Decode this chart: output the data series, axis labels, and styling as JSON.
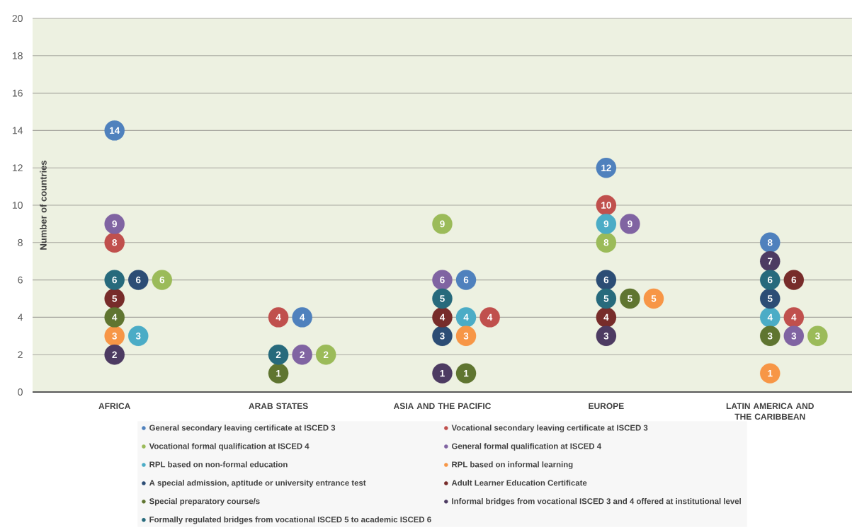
{
  "chart_data": {
    "type": "scatter",
    "ylabel": "Number of countries",
    "categories": [
      "AFRICA",
      "ARAB STATES",
      "ASIA AND THE PACIFIC",
      "EUROPE",
      "LATIN AMERICA AND THE CARIBBEAN"
    ],
    "ylim": [
      0,
      20
    ],
    "yticks": [
      0,
      2,
      4,
      6,
      8,
      10,
      12,
      14,
      16,
      18,
      20
    ],
    "grid": "y",
    "legend": "bottom",
    "marker": "circle",
    "data_labels": true,
    "series": [
      {
        "name": "General secondary leaving certificate at ISCED 3",
        "color": "#4f81bd",
        "values": [
          14,
          4,
          6,
          12,
          8
        ]
      },
      {
        "name": "Vocational secondary leaving certificate at ISCED 3",
        "color": "#c0504d",
        "values": [
          8,
          4,
          4,
          10,
          4
        ]
      },
      {
        "name": "Vocational formal qualification at ISCED 4",
        "color": "#9bbb59",
        "values": [
          6,
          2,
          9,
          8,
          3
        ]
      },
      {
        "name": "General formal qualification at ISCED 4",
        "color": "#8064a2",
        "values": [
          9,
          2,
          6,
          9,
          3
        ]
      },
      {
        "name": "RPL based on non-formal education",
        "color": "#4bacc6",
        "values": [
          3,
          null,
          4,
          9,
          4
        ]
      },
      {
        "name": "RPL based on informal learning",
        "color": "#f79646",
        "values": [
          3,
          null,
          3,
          5,
          1
        ]
      },
      {
        "name": "A special admission, aptitude or university entrance test",
        "color": "#2c4d75",
        "values": [
          6,
          null,
          3,
          6,
          5
        ]
      },
      {
        "name": "Adult Learner Education Certificate",
        "color": "#772c2a",
        "values": [
          5,
          null,
          4,
          4,
          6
        ]
      },
      {
        "name": "Special preparatory course/s",
        "color": "#5f7530",
        "values": [
          4,
          1,
          1,
          5,
          3
        ]
      },
      {
        "name": "Informal bridges from vocational ISCED 3 and 4 offered at institutional level",
        "color": "#4d3b62",
        "values": [
          2,
          null,
          1,
          3,
          7
        ]
      },
      {
        "name": "Formally regulated bridges from vocational ISCED 5 to academic ISCED 6",
        "color": "#276a7c",
        "values": [
          6,
          2,
          5,
          5,
          6
        ]
      }
    ]
  }
}
